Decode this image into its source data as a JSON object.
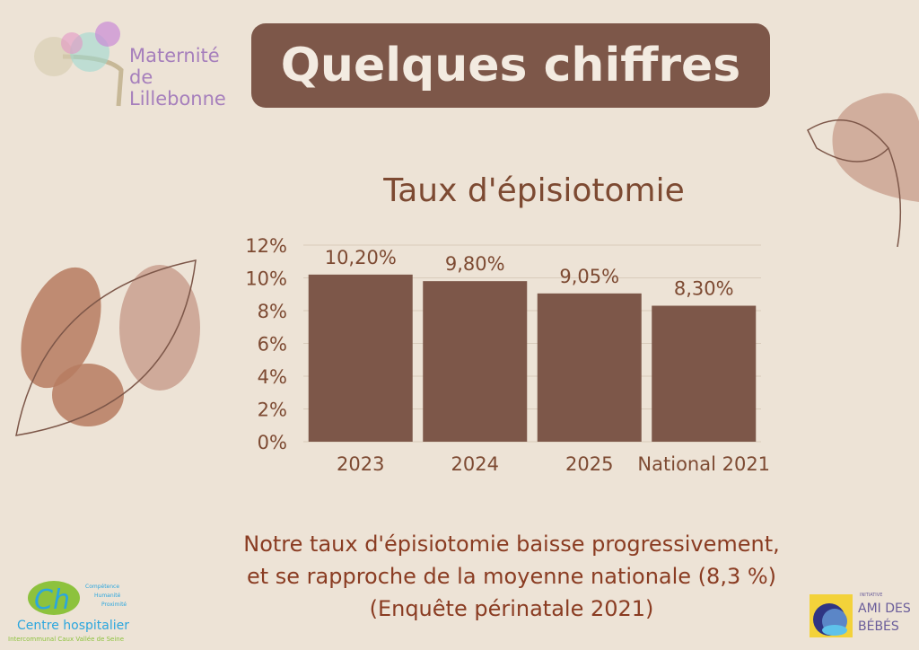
{
  "header": {
    "title": "Quelques chiffres"
  },
  "logos": {
    "maternite": [
      "Maternité",
      "de",
      "Lillebonne"
    ],
    "hospital": {
      "name": "Centre hospitalier",
      "sub": "Intercommunal Caux Vallée de Seine",
      "values": [
        "Compétence",
        "Humanité",
        "Proximité"
      ]
    },
    "ami": {
      "small": "INITIATIVE",
      "line1": "AMI DES",
      "line2": "BÉBÉS"
    }
  },
  "colors": {
    "background": "#ede3d6",
    "bar": "#7d5749",
    "text": "#7d4a32"
  },
  "chart_data": {
    "type": "bar",
    "title": "Taux d'épisiotomie",
    "categories": [
      "2023",
      "2024",
      "2025",
      "National 2021"
    ],
    "values": [
      10.2,
      9.8,
      9.05,
      8.3
    ],
    "data_labels": [
      "10,20%",
      "9,80%",
      "9,05%",
      "8,30%"
    ],
    "ylim": [
      0,
      12
    ],
    "yticks": [
      "0%",
      "2%",
      "4%",
      "6%",
      "8%",
      "10%",
      "12%"
    ],
    "grid": true
  },
  "footer": {
    "lines": [
      "Notre taux d'épisiotomie baisse progressivement,",
      "et se rapproche de la moyenne nationale (8,3 %)",
      "(Enquête périnatale 2021)"
    ]
  }
}
